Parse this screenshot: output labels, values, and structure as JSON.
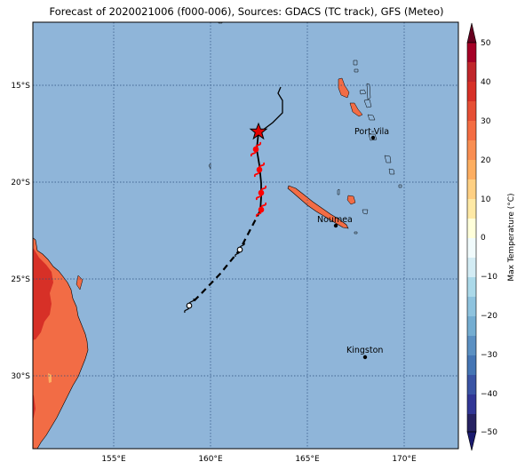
{
  "title": "Forecast of 2020021006 (f000-006), Sources: GDACS (TC track), GFS (Meteo)",
  "map": {
    "lat_labels": [
      "15°S",
      "20°S",
      "25°S",
      "30°S"
    ],
    "lon_labels": [
      "155°E",
      "160°E",
      "165°E",
      "170°E"
    ],
    "ocean_color": "#8fb5d9",
    "land_color": "#f26c45",
    "hot_land_color": "#d73027",
    "cities": [
      {
        "name": "Port-Vila"
      },
      {
        "name": "Noumea"
      },
      {
        "name": "Kingston"
      }
    ],
    "track": {
      "current_marker": "red-star",
      "forecast_symbol": "cyclone-icon"
    }
  },
  "colorbar": {
    "label": "Max Temperature (°C)",
    "ticks": [
      "50",
      "40",
      "30",
      "20",
      "10",
      "0",
      "−10",
      "−20",
      "−30",
      "−40",
      "−50"
    ],
    "colors": [
      "#a50026",
      "#d73027",
      "#f46d43",
      "#fdae61",
      "#fee090",
      "#ffffbf",
      "#e0f3f8",
      "#abd9e9",
      "#74add1",
      "#4575b4",
      "#313695",
      "#1a1a6e"
    ]
  }
}
